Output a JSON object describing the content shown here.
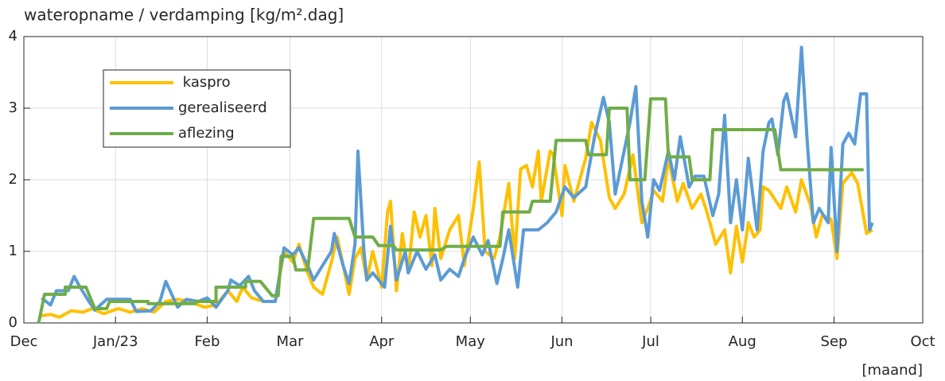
{
  "chart_data": {
    "type": "line",
    "title": "wateropname / verdamping [kg/m².dag]",
    "xlabel": "[maand]",
    "xlim": [
      0,
      304
    ],
    "xticks": [
      {
        "value": 0,
        "label": "Dec"
      },
      {
        "value": 31,
        "label": "Jan/23"
      },
      {
        "value": 62,
        "label": "Feb"
      },
      {
        "value": 90,
        "label": "Mar"
      },
      {
        "value": 121,
        "label": "Apr"
      },
      {
        "value": 151,
        "label": "May"
      },
      {
        "value": 182,
        "label": "Jun"
      },
      {
        "value": 212,
        "label": "Jul"
      },
      {
        "value": 243,
        "label": "Aug"
      },
      {
        "value": 274,
        "label": "Sep"
      },
      {
        "value": 304,
        "label": "Oct"
      }
    ],
    "ylim": [
      0,
      4
    ],
    "yticks": [
      0,
      1,
      2,
      3,
      4
    ],
    "grid": true,
    "legend": "upper left",
    "series": [
      {
        "name": " kaspro",
        "color": "#ffc000",
        "x": [
          6,
          9,
          12,
          16,
          20,
          23,
          27,
          32,
          36,
          40,
          44,
          48,
          52,
          56,
          61,
          65,
          69,
          72,
          74,
          77,
          81,
          85,
          88,
          91,
          93,
          96,
          98,
          101,
          104,
          106,
          110,
          112,
          114,
          116,
          118,
          121,
          123,
          124,
          126,
          128,
          130,
          132,
          134,
          136,
          138,
          139,
          141,
          144,
          147,
          149,
          152,
          154,
          156,
          159,
          161,
          164,
          166,
          168,
          170,
          172,
          174,
          175,
          178,
          179,
          182,
          183,
          186,
          190,
          192,
          195,
          198,
          200,
          203,
          206,
          209,
          211,
          213,
          216,
          218,
          221,
          223,
          226,
          229,
          231,
          234,
          237,
          239,
          241,
          243,
          245,
          247,
          249,
          250,
          252,
          256,
          258,
          261,
          263,
          266,
          268,
          270,
          273,
          275,
          277,
          280,
          282,
          285,
          287
        ],
        "values": [
          0.1,
          0.12,
          0.08,
          0.17,
          0.15,
          0.2,
          0.13,
          0.2,
          0.15,
          0.2,
          0.15,
          0.3,
          0.33,
          0.3,
          0.22,
          0.25,
          0.45,
          0.3,
          0.5,
          0.35,
          0.3,
          0.3,
          1.0,
          0.85,
          1.1,
          0.7,
          0.5,
          0.4,
          0.85,
          1.2,
          0.4,
          0.9,
          1.05,
          0.6,
          1.0,
          0.5,
          1.55,
          1.7,
          0.45,
          1.25,
          0.7,
          1.55,
          1.2,
          1.5,
          0.8,
          1.6,
          0.9,
          1.3,
          1.5,
          0.8,
          1.6,
          2.25,
          1.0,
          0.9,
          1.2,
          1.95,
          0.9,
          2.15,
          2.2,
          1.9,
          2.4,
          1.7,
          2.4,
          2.35,
          1.5,
          2.2,
          1.7,
          2.3,
          2.8,
          2.55,
          1.75,
          1.6,
          1.8,
          2.35,
          1.4,
          1.6,
          1.85,
          1.7,
          2.3,
          1.7,
          1.95,
          1.6,
          1.8,
          1.55,
          1.1,
          1.3,
          0.7,
          1.35,
          0.85,
          1.4,
          1.2,
          1.3,
          1.9,
          1.85,
          1.6,
          1.9,
          1.55,
          2.0,
          1.65,
          1.2,
          1.5,
          1.45,
          0.9,
          1.95,
          2.1,
          1.95,
          1.25,
          1.3
        ]
      },
      {
        "name": "gerealiseerd",
        "color": "#5b9bd5",
        "x": [
          6,
          9,
          11,
          15,
          17,
          19,
          22,
          24,
          28,
          32,
          36,
          38,
          43,
          46,
          48,
          52,
          55,
          59,
          62,
          65,
          69,
          70,
          73,
          76,
          78,
          81,
          85,
          88,
          91,
          93,
          96,
          98,
          101,
          104,
          105,
          108,
          110,
          112,
          113,
          115,
          116,
          118,
          122,
          124,
          126,
          129,
          130,
          133,
          136,
          139,
          141,
          144,
          147,
          149,
          152,
          155,
          157,
          160,
          162,
          164,
          167,
          169,
          174,
          177,
          180,
          183,
          186,
          190,
          193,
          196,
          198,
          200,
          202,
          205,
          207,
          209,
          211,
          213,
          215,
          218,
          220,
          222,
          225,
          227,
          230,
          233,
          235,
          237,
          239,
          241,
          243,
          245,
          248,
          250,
          252,
          253,
          255,
          257,
          258,
          260,
          261,
          263,
          265,
          267,
          269,
          272,
          273,
          275,
          277,
          279,
          281,
          283,
          285,
          286,
          287
        ],
        "values": [
          0.35,
          0.25,
          0.45,
          0.45,
          0.65,
          0.5,
          0.3,
          0.18,
          0.33,
          0.33,
          0.33,
          0.16,
          0.17,
          0.3,
          0.58,
          0.22,
          0.33,
          0.3,
          0.35,
          0.22,
          0.45,
          0.6,
          0.52,
          0.65,
          0.45,
          0.3,
          0.3,
          1.05,
          0.95,
          1.05,
          0.8,
          0.6,
          0.8,
          1.0,
          1.25,
          0.8,
          0.55,
          1.1,
          2.4,
          1.0,
          0.6,
          0.7,
          0.5,
          1.35,
          0.6,
          1.0,
          0.7,
          1.0,
          0.75,
          0.95,
          0.6,
          0.75,
          0.65,
          0.9,
          1.2,
          0.95,
          1.15,
          0.55,
          0.9,
          1.3,
          0.5,
          1.3,
          1.3,
          1.4,
          1.55,
          1.9,
          1.75,
          1.9,
          2.6,
          3.15,
          2.8,
          1.8,
          2.2,
          2.8,
          3.3,
          1.7,
          1.2,
          2.0,
          1.85,
          2.4,
          2.0,
          2.6,
          1.9,
          2.05,
          2.05,
          1.5,
          1.8,
          2.9,
          1.4,
          2.0,
          1.3,
          2.3,
          1.3,
          2.4,
          2.8,
          2.85,
          2.35,
          3.1,
          3.2,
          2.8,
          2.6,
          3.85,
          2.5,
          1.4,
          1.6,
          1.4,
          2.45,
          1.0,
          2.5,
          2.65,
          2.5,
          3.2,
          3.2,
          1.3,
          1.4
        ]
      },
      {
        "name": "aflezing",
        "color": "#70ad47",
        "x": [
          5,
          7,
          14,
          14,
          21,
          24,
          28,
          29,
          42,
          42,
          58,
          58,
          65,
          65,
          75,
          75,
          80,
          84,
          86,
          87,
          91,
          92,
          96,
          98,
          110,
          112,
          118,
          120,
          125,
          126,
          141,
          143,
          161,
          162,
          171,
          172,
          178,
          180,
          190,
          191,
          197,
          198,
          204,
          205,
          210,
          212,
          217,
          218,
          225,
          226,
          232,
          233,
          254,
          256,
          284
        ],
        "values": [
          0,
          0.4,
          0.4,
          0.5,
          0.5,
          0.2,
          0.2,
          0.3,
          0.3,
          0.27,
          0.27,
          0.3,
          0.3,
          0.5,
          0.5,
          0.58,
          0.58,
          0.38,
          0.38,
          0.93,
          0.93,
          0.74,
          0.74,
          1.46,
          1.46,
          1.2,
          1.2,
          1.08,
          1.08,
          1.02,
          1.02,
          1.07,
          1.07,
          1.55,
          1.55,
          1.7,
          1.7,
          2.55,
          2.55,
          2.35,
          2.35,
          3.0,
          3.0,
          2.0,
          2.0,
          3.13,
          3.13,
          2.32,
          2.32,
          2.0,
          2.0,
          2.7,
          2.7,
          2.14,
          2.14
        ]
      }
    ]
  }
}
